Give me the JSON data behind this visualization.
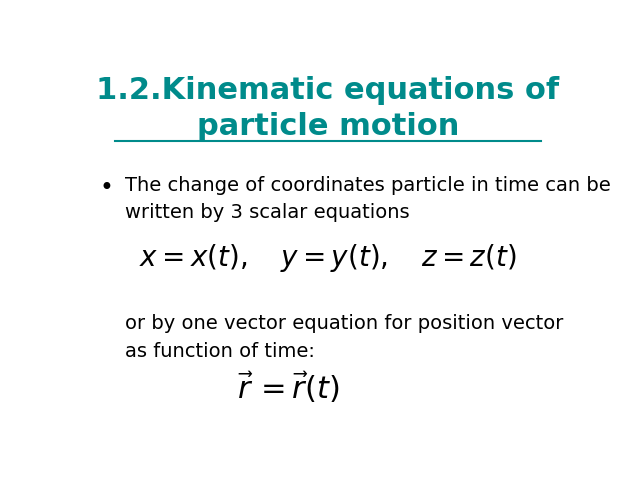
{
  "title_line1": "1.2.Kinematic equations of",
  "title_line2": "particle motion",
  "title_color": "#008B8B",
  "title_fontsize": 22,
  "bullet_text_line1": "The change of coordinates particle in time can be",
  "bullet_text_line2": "written by 3 scalar equations",
  "bullet_fontsize": 14,
  "eq1_fontsize": 20,
  "sub_text_line1": "or by one vector equation for position vector",
  "sub_text_line2": "as function of time:",
  "sub_fontsize": 14,
  "eq2_fontsize": 22,
  "background_color": "#ffffff",
  "text_color": "#000000"
}
